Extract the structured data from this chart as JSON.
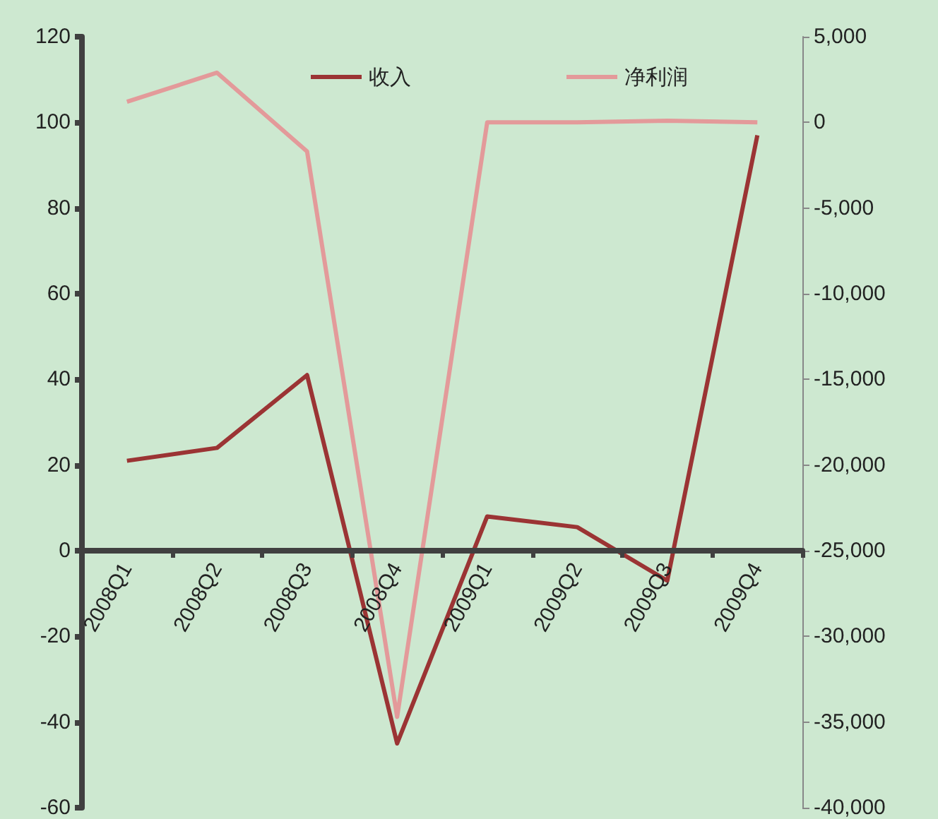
{
  "chart_data": {
    "type": "line",
    "categories": [
      "2008Q1",
      "2008Q2",
      "2008Q3",
      "2008Q4",
      "2009Q1",
      "2009Q2",
      "2009Q3",
      "2009Q4"
    ],
    "series": [
      {
        "name": "收入",
        "color": "#9b3434",
        "values": [
          21,
          24,
          41,
          -45,
          8,
          5.5,
          -7,
          97
        ]
      },
      {
        "name": "净利润",
        "color": "#e39a9a",
        "axis": "y2",
        "values": [
          1200,
          2900,
          -1700,
          -34700,
          0,
          0,
          100,
          0
        ]
      }
    ],
    "ylim": [
      -60,
      120
    ],
    "yticks": [
      -60,
      -40,
      -20,
      0,
      20,
      40,
      60,
      80,
      100,
      120
    ],
    "y2lim": [
      -40000,
      5000
    ],
    "y2ticks": [
      {
        "value": -40000,
        "label": "-40,000"
      },
      {
        "value": -35000,
        "label": "-35,000"
      },
      {
        "value": -30000,
        "label": "-30,000"
      },
      {
        "value": -25000,
        "label": "-25,000"
      },
      {
        "value": -20000,
        "label": "-20,000"
      },
      {
        "value": -15000,
        "label": "-15,000"
      },
      {
        "value": -10000,
        "label": "-10,000"
      },
      {
        "value": -5000,
        "label": "-5,000"
      },
      {
        "value": 0,
        "label": "0"
      },
      {
        "value": 5000,
        "label": "5,000"
      }
    ],
    "grid": false,
    "legend": "top",
    "marker": "none",
    "line_style": "solid"
  }
}
